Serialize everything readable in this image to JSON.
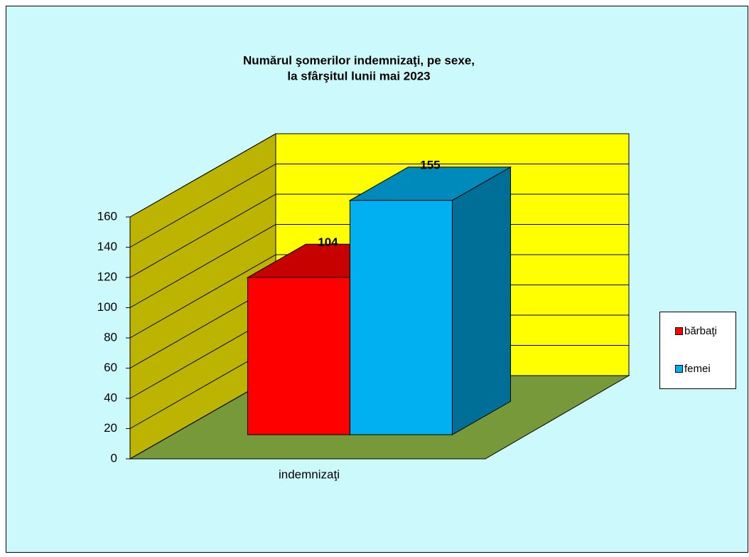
{
  "chart_data": {
    "type": "bar3d",
    "title": [
      "Numărul şomerilor indemnizaţi, pe sexe,",
      "la sfârşitul lunii mai 2023"
    ],
    "categories": [
      "indemnizaţi"
    ],
    "series": [
      {
        "name": "bărbaţi",
        "color": "#ff0000",
        "values": [
          104
        ]
      },
      {
        "name": "femei",
        "color": "#00b0f0",
        "values": [
          155
        ]
      }
    ],
    "ylim": [
      0,
      160
    ],
    "yticks": [
      0,
      20,
      40,
      60,
      80,
      100,
      120,
      140,
      160
    ],
    "grid": true,
    "legend": "right"
  }
}
